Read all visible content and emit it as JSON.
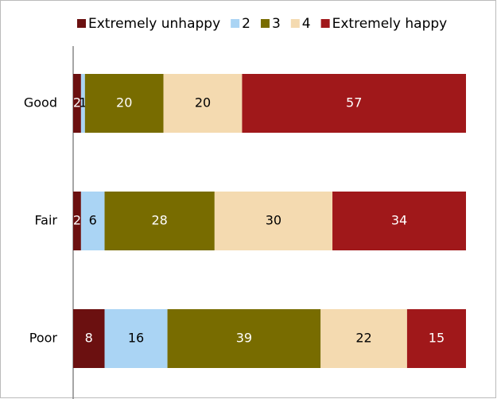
{
  "chart_data": {
    "type": "stacked-barh",
    "categories": [
      "Good",
      "Fair",
      "Poor"
    ],
    "series": [
      {
        "name": "Extremely unhappy",
        "color": "#6b1010",
        "values": [
          2,
          2,
          8
        ]
      },
      {
        "name": "2",
        "color": "#aad4f4",
        "values": [
          1,
          6,
          16
        ]
      },
      {
        "name": "3",
        "color": "#786c00",
        "values": [
          20,
          28,
          39
        ]
      },
      {
        "name": "4",
        "color": "#f4dab0",
        "values": [
          20,
          30,
          22
        ]
      },
      {
        "name": "Extremely happy",
        "color": "#a0181a",
        "values": [
          57,
          34,
          15
        ]
      }
    ],
    "xlim": [
      0,
      100
    ],
    "legend": "top"
  }
}
